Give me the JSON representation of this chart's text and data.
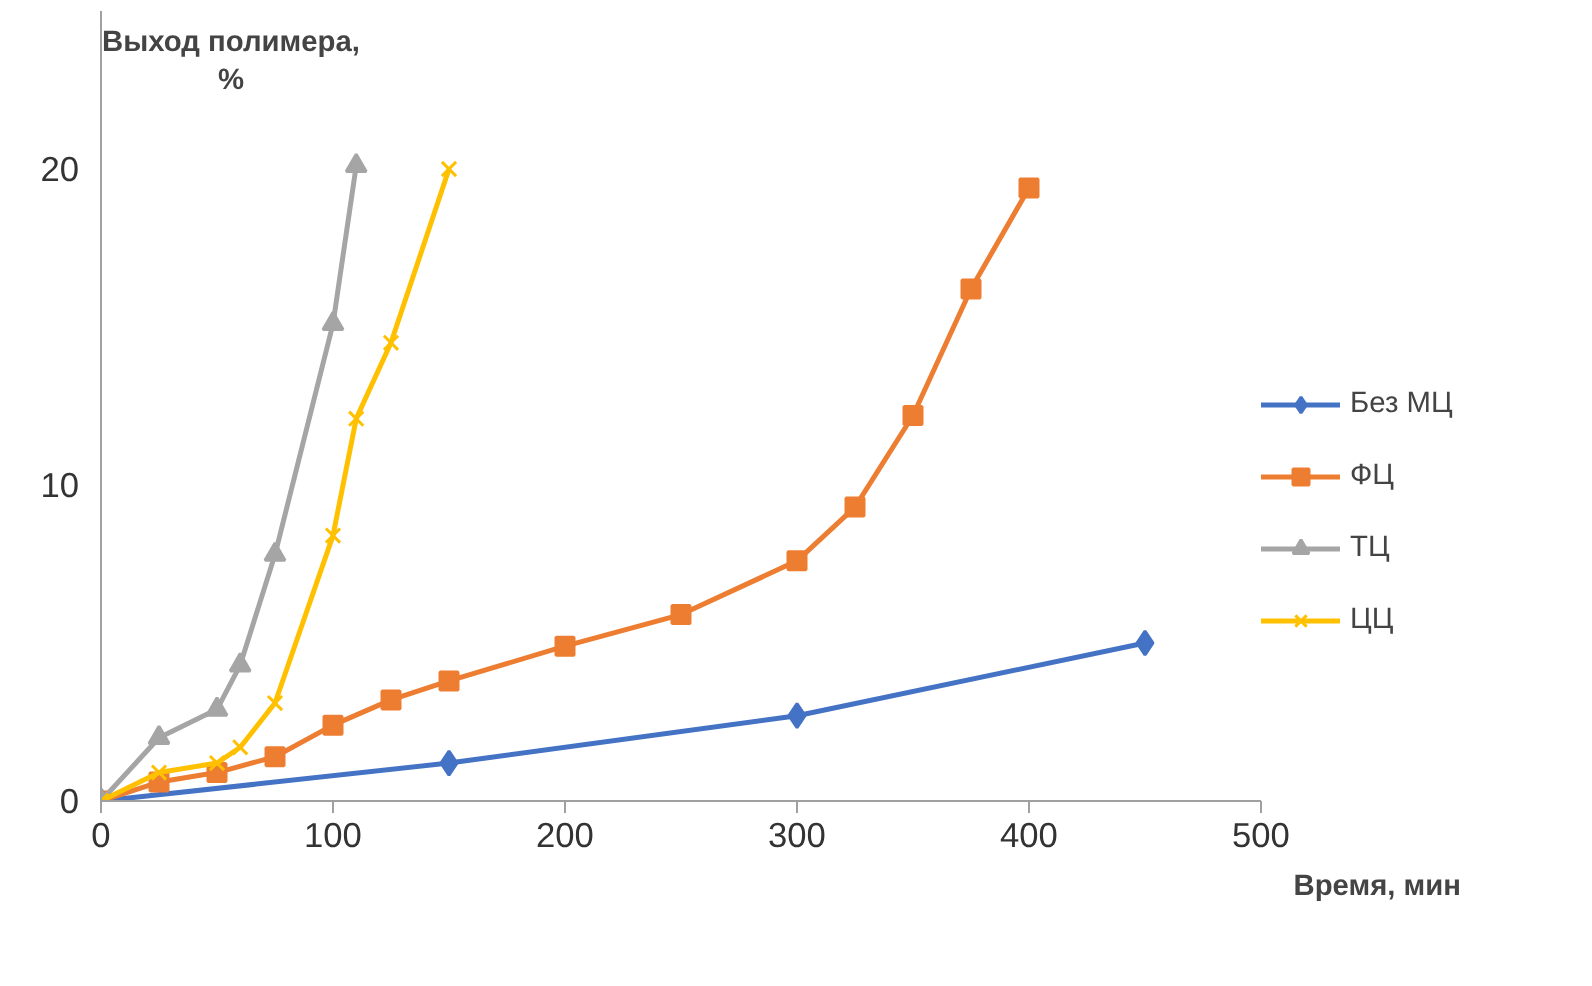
{
  "chart_data": {
    "type": "line",
    "xlabel": "Время, мин",
    "ylabel": "Выход полимера, %",
    "xlim": [
      0,
      500
    ],
    "xticks": [
      0,
      100,
      200,
      300,
      400,
      500
    ],
    "ylim": [
      0,
      25
    ],
    "yticks": [
      0,
      10,
      20
    ],
    "grid": false,
    "legend": "right",
    "series": [
      {
        "name": "Без МЦ",
        "color": "#4472c4",
        "marker": "diamond",
        "x": [
          0,
          150,
          300,
          450
        ],
        "values": [
          0,
          1.2,
          2.7,
          5.0
        ]
      },
      {
        "name": "ФЦ",
        "color": "#ed7d31",
        "marker": "square",
        "x": [
          0,
          25,
          50,
          75,
          100,
          125,
          150,
          200,
          250,
          300,
          325,
          350,
          375,
          400
        ],
        "values": [
          0,
          0.6,
          0.9,
          1.4,
          2.4,
          3.2,
          3.8,
          4.9,
          5.9,
          7.6,
          9.3,
          12.2,
          16.2,
          19.4
        ]
      },
      {
        "name": "ТЦ",
        "color": "#a5a5a5",
        "marker": "triangle",
        "x": [
          0,
          25,
          50,
          60,
          75,
          100,
          110
        ],
        "values": [
          0,
          2.0,
          2.9,
          4.3,
          7.8,
          15.1,
          20.1
        ]
      },
      {
        "name": "ЦЦ",
        "color": "#ffc000",
        "marker": "cross",
        "x": [
          0,
          25,
          50,
          60,
          75,
          100,
          110,
          125,
          150
        ],
        "values": [
          0,
          0.9,
          1.2,
          1.7,
          3.1,
          8.4,
          12.1,
          14.5,
          20.0
        ]
      }
    ]
  }
}
